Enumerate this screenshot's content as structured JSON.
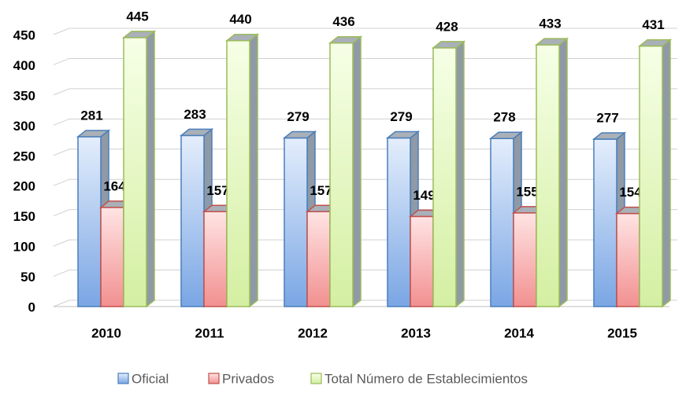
{
  "chart_data": {
    "type": "bar3d",
    "categories": [
      "2010",
      "2011",
      "2012",
      "2013",
      "2014",
      "2015"
    ],
    "series": [
      {
        "name": "Oficial",
        "color": "#4a7ebb",
        "values": [
          281,
          283,
          279,
          279,
          278,
          277
        ]
      },
      {
        "name": "Privados",
        "color": "#c0504d",
        "values": [
          164,
          157,
          157,
          149,
          155,
          154
        ]
      },
      {
        "name": "Total Número de Establecimientos",
        "color": "#9bbb59",
        "values": [
          445,
          440,
          436,
          428,
          433,
          431
        ]
      }
    ],
    "ylim": [
      0,
      450
    ],
    "yticks": [
      0,
      50,
      100,
      150,
      200,
      250,
      300,
      350,
      400,
      450
    ],
    "grid": true,
    "legend": "bottom"
  }
}
